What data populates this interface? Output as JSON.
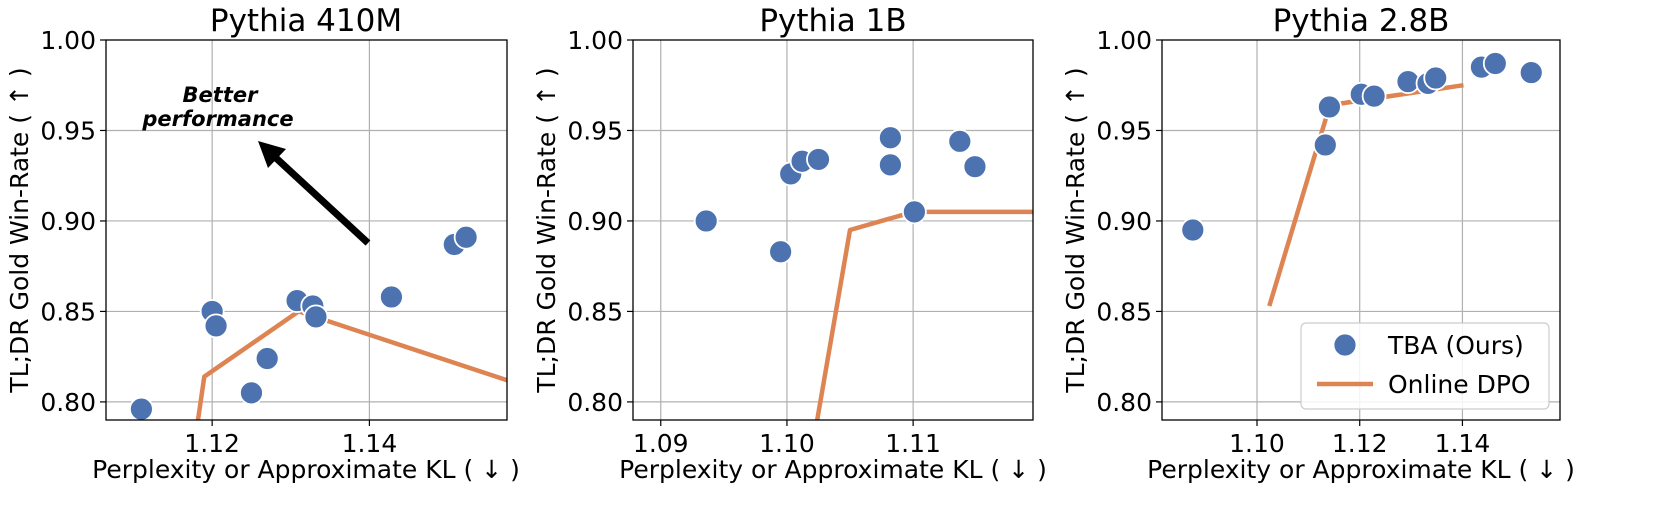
{
  "colors": {
    "tba": "#4c72b0",
    "dpo": "#dd8452",
    "grid": "#b0b0b0",
    "arrow": "#000000"
  },
  "chart_data": [
    {
      "type": "scatter",
      "title": "Pythia 410M",
      "xlabel": "Perplexity or Approximate KL ( ↓ )",
      "ylabel": "TL;DR Gold Win-Rate ( ↑ )",
      "xlim": [
        1.1065,
        1.1575
      ],
      "ylim": [
        0.79,
        1.0
      ],
      "xticks": [
        1.12,
        1.14
      ],
      "xtick_labels": [
        "1.12",
        "1.14"
      ],
      "yticks": [
        0.8,
        0.85,
        0.9,
        0.95,
        1.0
      ],
      "ytick_labels": [
        "0.80",
        "0.85",
        "0.90",
        "0.95",
        "1.00"
      ],
      "grid": true,
      "series": [
        {
          "name": "TBA (Ours)",
          "kind": "scatter",
          "points": [
            [
              1.111,
              0.796
            ],
            [
              1.12,
              0.85
            ],
            [
              1.1205,
              0.842
            ],
            [
              1.125,
              0.805
            ],
            [
              1.127,
              0.824
            ],
            [
              1.1308,
              0.856
            ],
            [
              1.1328,
              0.853
            ],
            [
              1.1332,
              0.847
            ],
            [
              1.1428,
              0.858
            ],
            [
              1.1508,
              0.887
            ],
            [
              1.1523,
              0.891
            ]
          ]
        },
        {
          "name": "Online DPO",
          "kind": "line",
          "points": [
            [
              1.1182,
              0.79
            ],
            [
              1.119,
              0.814
            ],
            [
              1.131,
              0.85
            ],
            [
              1.1575,
              0.812
            ]
          ]
        }
      ],
      "annotation": {
        "lines": [
          "Better",
          "performance"
        ]
      }
    },
    {
      "type": "scatter",
      "title": "Pythia 1B",
      "xlabel": "Perplexity or Approximate KL ( ↓ )",
      "ylabel": "TL;DR Gold Win-Rate ( ↑ )",
      "xlim": [
        1.0878,
        1.1195
      ],
      "ylim": [
        0.79,
        1.0
      ],
      "xticks": [
        1.09,
        1.1,
        1.11
      ],
      "xtick_labels": [
        "1.09",
        "1.10",
        "1.11"
      ],
      "yticks": [
        0.8,
        0.85,
        0.9,
        0.95,
        1.0
      ],
      "ytick_labels": [
        "0.80",
        "0.85",
        "0.90",
        "0.95",
        "1.00"
      ],
      "grid": true,
      "series": [
        {
          "name": "TBA (Ours)",
          "kind": "scatter",
          "points": [
            [
              1.0936,
              0.9
            ],
            [
              1.0995,
              0.883
            ],
            [
              1.1003,
              0.926
            ],
            [
              1.1012,
              0.933
            ],
            [
              1.1025,
              0.934
            ],
            [
              1.1082,
              0.946
            ],
            [
              1.1082,
              0.931
            ],
            [
              1.1101,
              0.905
            ],
            [
              1.1137,
              0.944
            ],
            [
              1.1149,
              0.93
            ]
          ]
        },
        {
          "name": "Online DPO",
          "kind": "line",
          "points": [
            [
              1.1024,
              0.79
            ],
            [
              1.105,
              0.895
            ],
            [
              1.11,
              0.905
            ],
            [
              1.1195,
              0.905
            ]
          ]
        }
      ]
    },
    {
      "type": "scatter",
      "title": "Pythia 2.8B",
      "xlabel": "Perplexity or Approximate KL ( ↓ )",
      "ylabel": "TL;DR Gold Win-Rate ( ↑ )",
      "xlim": [
        1.0815,
        1.159
      ],
      "ylim": [
        0.79,
        1.0
      ],
      "xticks": [
        1.1,
        1.12,
        1.14
      ],
      "xtick_labels": [
        "1.10",
        "1.12",
        "1.14"
      ],
      "yticks": [
        0.8,
        0.85,
        0.9,
        0.95,
        1.0
      ],
      "ytick_labels": [
        "0.80",
        "0.85",
        "0.90",
        "0.95",
        "1.00"
      ],
      "grid": true,
      "series": [
        {
          "name": "TBA (Ours)",
          "kind": "scatter",
          "points": [
            [
              1.0875,
              0.895
            ],
            [
              1.1133,
              0.942
            ],
            [
              1.1141,
              0.963
            ],
            [
              1.1203,
              0.97
            ],
            [
              1.1228,
              0.969
            ],
            [
              1.1294,
              0.977
            ],
            [
              1.1333,
              0.976
            ],
            [
              1.1348,
              0.979
            ],
            [
              1.1437,
              0.985
            ],
            [
              1.1464,
              0.987
            ],
            [
              1.1534,
              0.982
            ]
          ]
        },
        {
          "name": "Online DPO",
          "kind": "line",
          "points": [
            [
              1.1024,
              0.853
            ],
            [
              1.1142,
              0.964
            ],
            [
              1.1402,
              0.975
            ]
          ]
        }
      ],
      "legend": {
        "location": "lower-right",
        "entries": [
          "TBA (Ours)",
          "Online DPO"
        ]
      }
    }
  ]
}
